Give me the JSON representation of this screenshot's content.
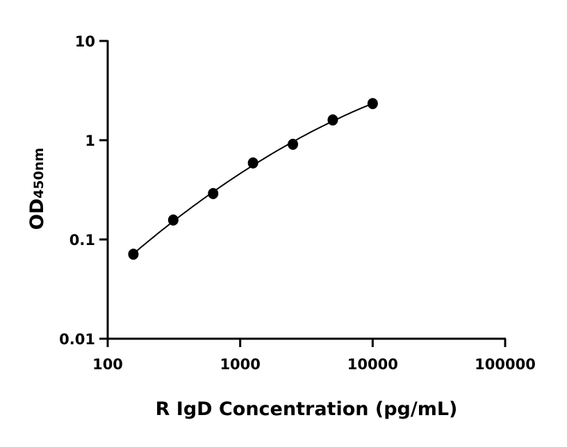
{
  "chart_data": {
    "type": "scatter",
    "title": "",
    "xlabel": "R IgD Concentration (pg/mL)",
    "ylabel": "OD",
    "ylabel_subscript": "450nm",
    "x_scale": "log",
    "y_scale": "log",
    "xlim": [
      100,
      100000
    ],
    "ylim": [
      0.01,
      10
    ],
    "x_ticks": [
      "100",
      "1000",
      "10000",
      "100000"
    ],
    "y_ticks": [
      "0.01",
      "0.1",
      "1",
      "10"
    ],
    "grid": false,
    "legend": "none",
    "fit_curve": true,
    "marker_color": "#000000",
    "series": [
      {
        "x": [
          156.25,
          312.5,
          625,
          1250,
          2500,
          5000,
          10000
        ],
        "y": [
          0.071,
          0.157,
          0.29,
          0.59,
          0.91,
          1.6,
          2.34
        ]
      }
    ]
  }
}
